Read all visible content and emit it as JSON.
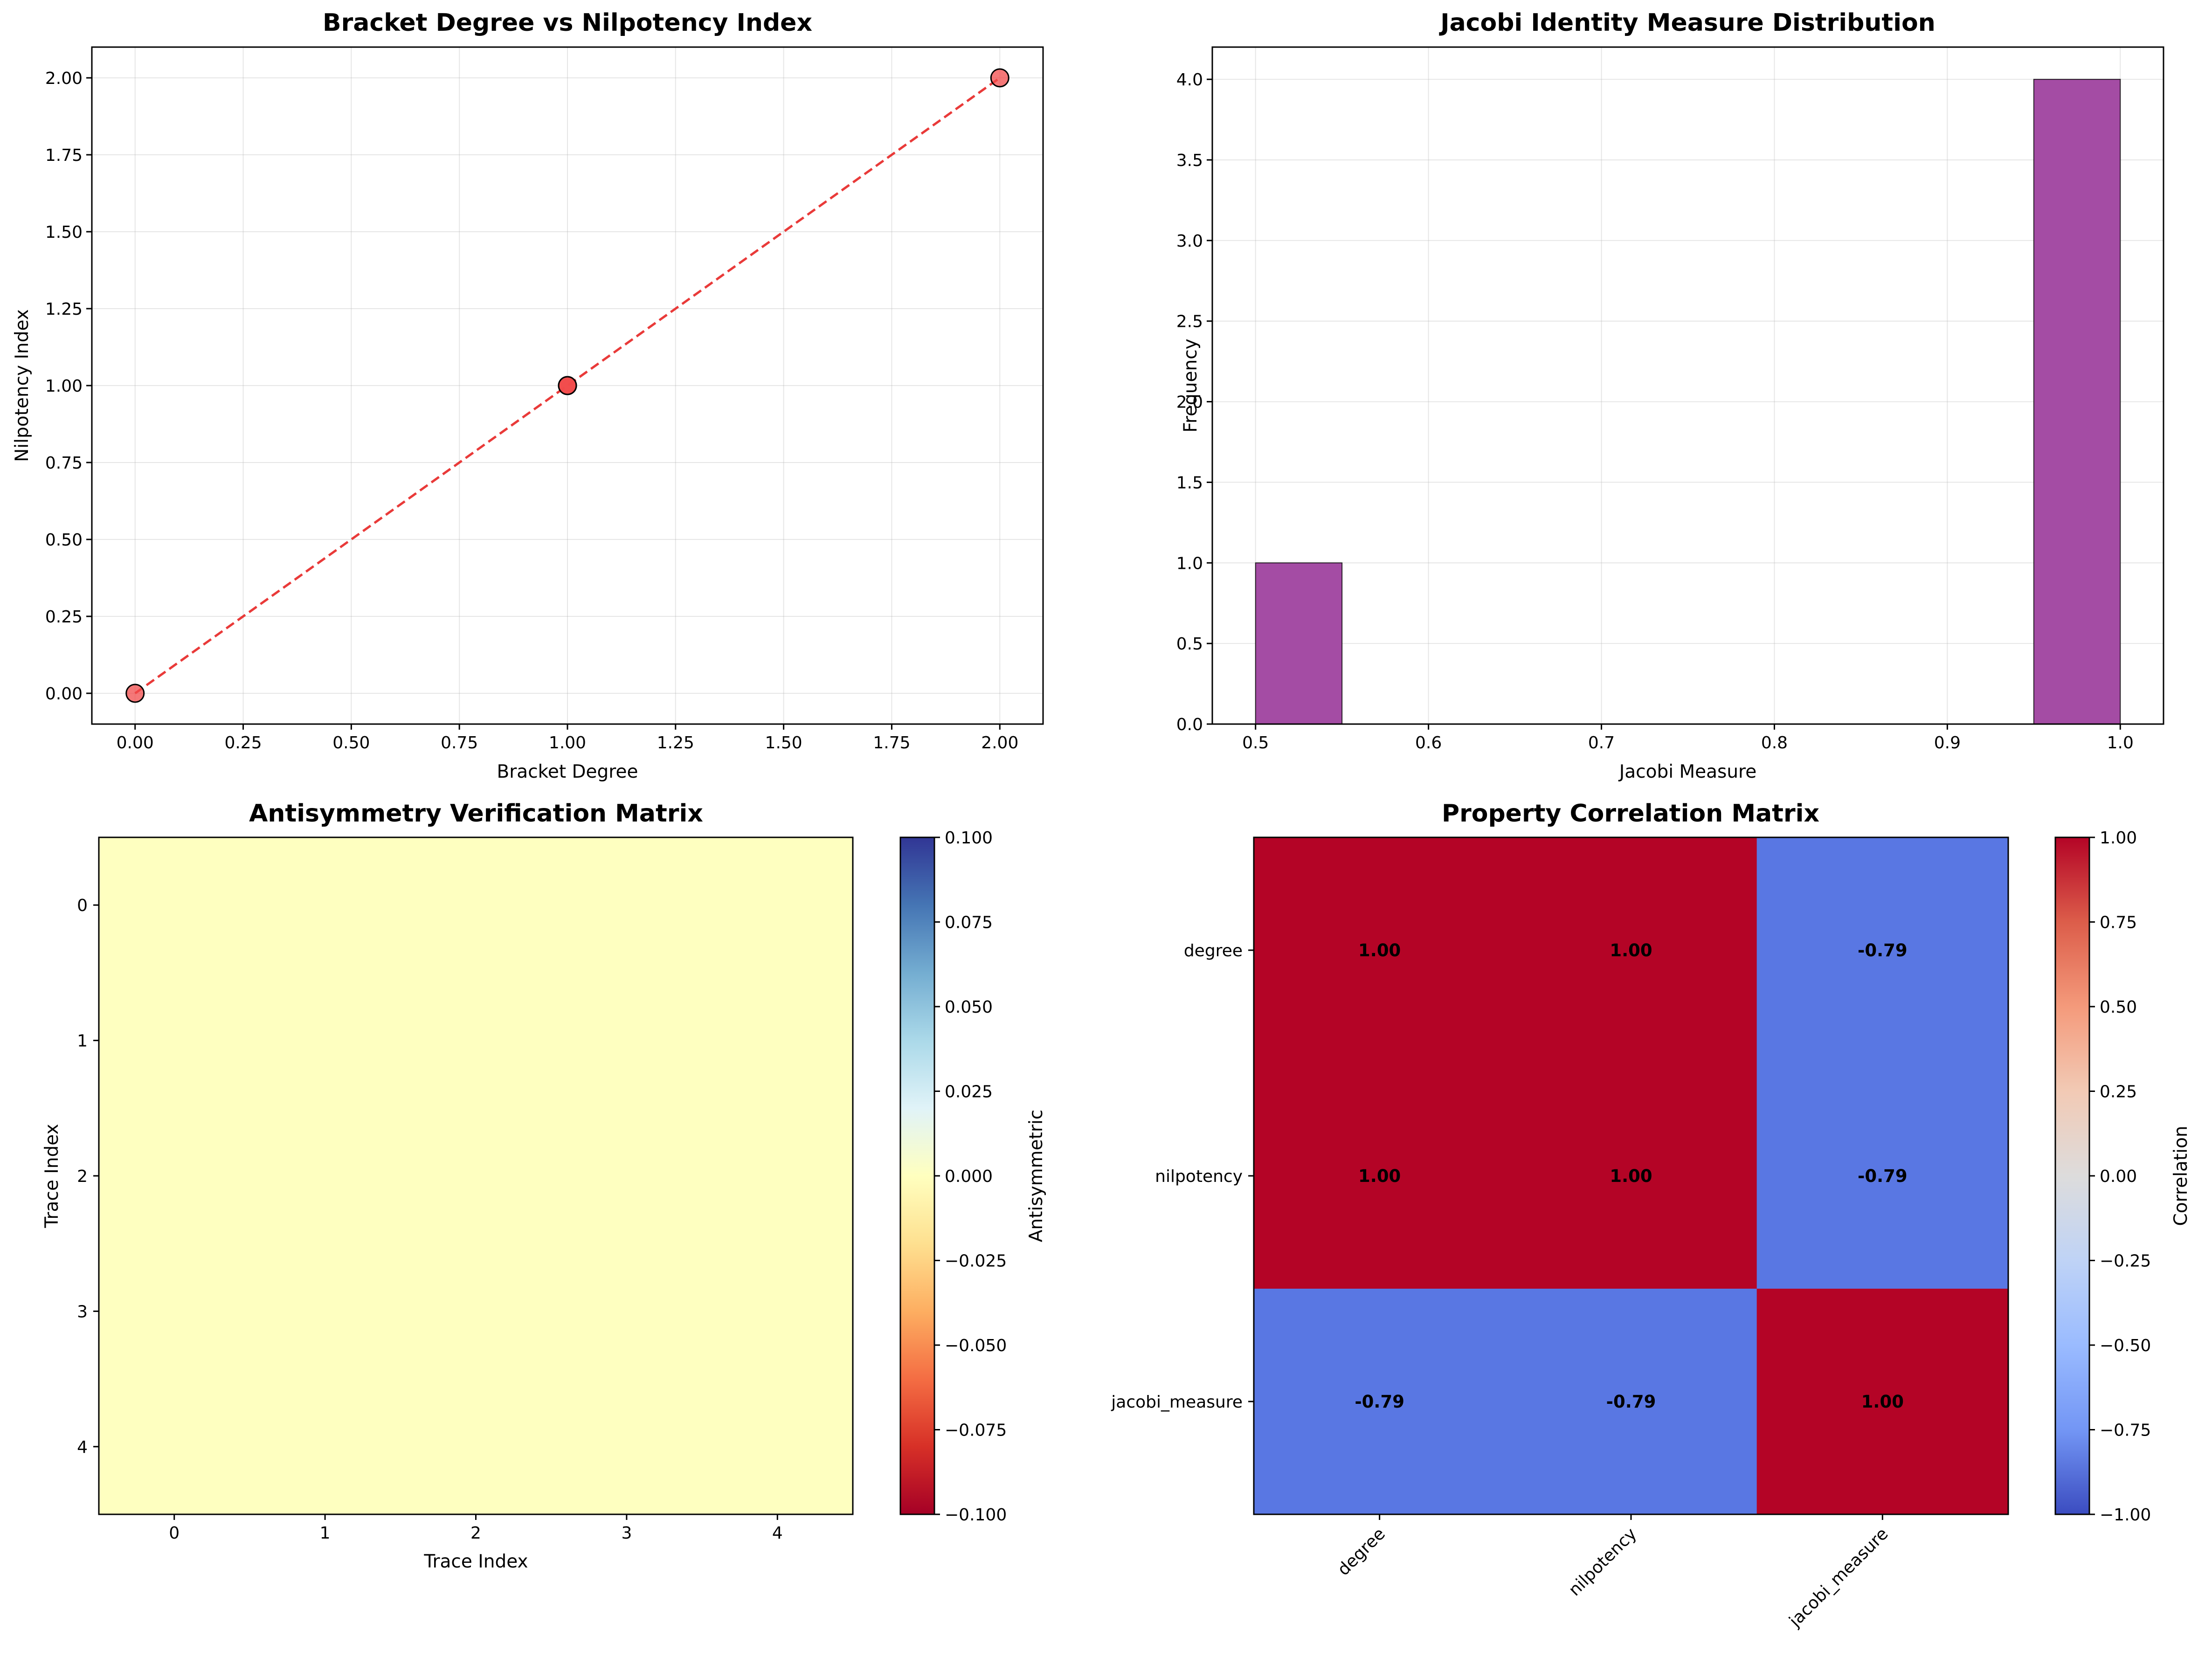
{
  "chart_data": [
    {
      "type": "scatter",
      "title": "Bracket Degree vs Nilpotency Index",
      "xlabel": "Bracket Degree",
      "ylabel": "Nilpotency Index",
      "xlim": [
        -0.1,
        2.1
      ],
      "ylim": [
        -0.1,
        2.1
      ],
      "xticks": [
        "0.00",
        "0.25",
        "0.50",
        "0.75",
        "1.00",
        "1.25",
        "1.50",
        "1.75",
        "2.00"
      ],
      "yticks": [
        "0.00",
        "0.25",
        "0.50",
        "0.75",
        "1.00",
        "1.25",
        "1.50",
        "1.75",
        "2.00"
      ],
      "grid": true,
      "points": [
        {
          "x": 0,
          "y": 0
        },
        {
          "x": 1,
          "y": 1
        },
        {
          "x": 1,
          "y": 1
        },
        {
          "x": 1,
          "y": 1
        },
        {
          "x": 2,
          "y": 2
        }
      ],
      "trend_line": [
        {
          "x": 0,
          "y": 0
        },
        {
          "x": 2,
          "y": 2
        }
      ],
      "point_color": "#f14b4b",
      "line_color": "#e8302f"
    },
    {
      "type": "bar",
      "title": "Jacobi Identity Measure Distribution",
      "xlabel": "Jacobi Measure",
      "ylabel": "Frequency",
      "xlim": [
        0.475,
        1.025
      ],
      "ylim": [
        0,
        4.2
      ],
      "xticks": [
        "0.5",
        "0.6",
        "0.7",
        "0.8",
        "0.9",
        "1.0"
      ],
      "yticks": [
        "0.0",
        "0.5",
        "1.0",
        "1.5",
        "2.0",
        "2.5",
        "3.0",
        "3.5",
        "4.0"
      ],
      "grid": true,
      "bins": [
        0.5,
        0.55,
        0.6,
        0.65,
        0.7,
        0.75,
        0.8,
        0.85,
        0.9,
        0.95,
        1.0
      ],
      "counts": [
        1,
        0,
        0,
        0,
        0,
        0,
        0,
        0,
        0,
        4
      ],
      "bar_color": "#a44ca4"
    },
    {
      "type": "heatmap",
      "title": "Antisymmetry Verification Matrix",
      "xlabel": "Trace Index",
      "ylabel": "Trace Index",
      "xticks": [
        "0",
        "1",
        "2",
        "3",
        "4"
      ],
      "yticks": [
        "0",
        "1",
        "2",
        "3",
        "4"
      ],
      "values": [
        [
          0,
          0,
          0,
          0,
          0
        ],
        [
          0,
          0,
          0,
          0,
          0
        ],
        [
          0,
          0,
          0,
          0,
          0
        ],
        [
          0,
          0,
          0,
          0,
          0
        ],
        [
          0,
          0,
          0,
          0,
          0
        ]
      ],
      "fill_color": "#feffc0",
      "colorbar": {
        "label": "Antisymmetric",
        "range": [
          -0.1,
          0.1
        ],
        "ticks": [
          "0.100",
          "0.075",
          "0.050",
          "0.025",
          "0.000",
          "−0.025",
          "−0.050",
          "−0.075",
          "−0.100"
        ],
        "stops": [
          "#313695",
          "#4575b4",
          "#74add1",
          "#abd9e9",
          "#e0f3f8",
          "#ffffbf",
          "#fee090",
          "#fdae61",
          "#f46d43",
          "#d73027",
          "#a50026"
        ]
      }
    },
    {
      "type": "heatmap",
      "title": "Property Correlation Matrix",
      "categories": [
        "degree",
        "nilpotency",
        "jacobi_measure"
      ],
      "values": [
        [
          1.0,
          1.0,
          -0.79
        ],
        [
          1.0,
          1.0,
          -0.79
        ],
        [
          -0.79,
          -0.79,
          1.0
        ]
      ],
      "labels": [
        [
          "1.00",
          "1.00",
          "-0.79"
        ],
        [
          "1.00",
          "1.00",
          "-0.79"
        ],
        [
          "-0.79",
          "-0.79",
          "1.00"
        ]
      ],
      "cell_colors": {
        "positive": "#b40426",
        "negative": "#5977e3"
      },
      "colorbar": {
        "label": "Correlation",
        "range": [
          -1,
          1
        ],
        "ticks": [
          "1.00",
          "0.75",
          "0.50",
          "0.25",
          "0.00",
          "−0.25",
          "−0.50",
          "−0.75",
          "−1.00"
        ],
        "stops": [
          "#b40426",
          "#dc5d4a",
          "#f49a7b",
          "#f2cab5",
          "#dddcdc",
          "#bfd3f6",
          "#9abbff",
          "#7396f5",
          "#3b4cc0"
        ]
      }
    }
  ]
}
